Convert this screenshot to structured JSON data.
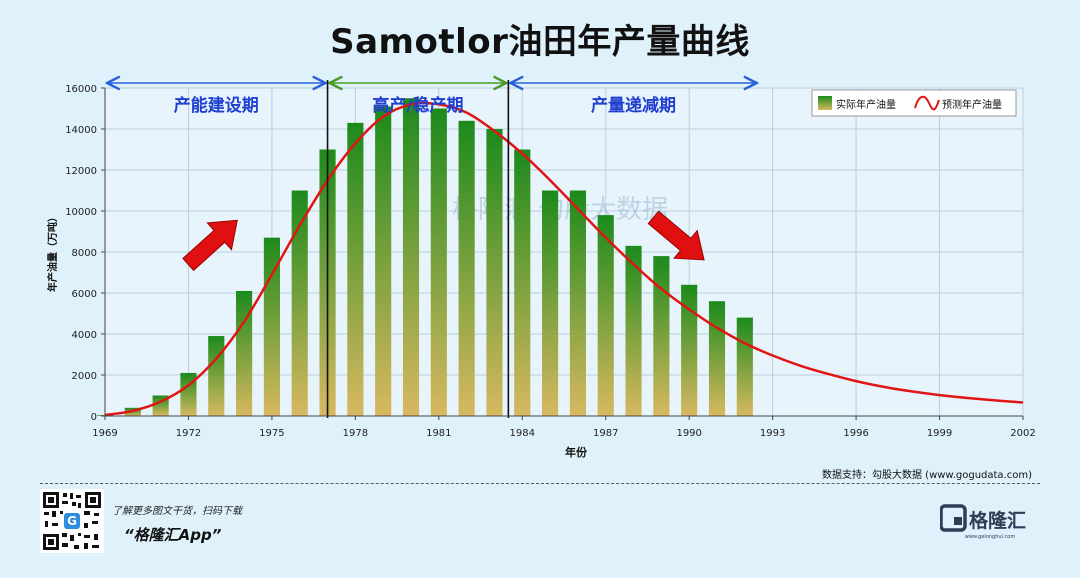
{
  "title": "Samotlor油田年产量曲线",
  "phases": [
    {
      "label": "产能建设期",
      "color": "#2b5fd9",
      "x_from": 1969,
      "x_to": 1977
    },
    {
      "label": "高产/稳产期",
      "color": "#4a9a22",
      "x_from": 1977,
      "x_to": 1983.5
    },
    {
      "label": "产量递减期",
      "color": "#2b5fd9",
      "x_from": 1983.5,
      "x_to": 1992.5
    }
  ],
  "watermark": "格隆汇  勾股大数据",
  "source": "数据支持：勾股大数据  (www.gogudata.com)",
  "footer": {
    "line1": "了解更多图文干货，扫码下载",
    "line2": "“格隆汇App”",
    "brand": "格隆汇",
    "brand_url": "www.gelonghui.com"
  },
  "chart_data": {
    "type": "bar",
    "title": "Samotlor油田年产量曲线",
    "xlabel": "年份",
    "ylabel": "年产油量（万吨）",
    "xlim": [
      1969,
      2002
    ],
    "ylim": [
      0,
      16000
    ],
    "x_ticks": [
      1969,
      1972,
      1975,
      1978,
      1981,
      1984,
      1987,
      1990,
      1993,
      1996,
      1999,
      2002
    ],
    "y_ticks": [
      0,
      2000,
      4000,
      6000,
      8000,
      10000,
      12000,
      14000,
      16000
    ],
    "grid": true,
    "legend_position": "top-right",
    "series": [
      {
        "name": "实际年产油量",
        "type": "bar",
        "color_top": "#1c8a1c",
        "color_bottom": "#d8b860",
        "x": [
          1969,
          1970,
          1971,
          1972,
          1973,
          1974,
          1975,
          1976,
          1977,
          1978,
          1979,
          1980,
          1981,
          1982,
          1983,
          1984,
          1985,
          1986,
          1987,
          1988,
          1989,
          1990,
          1991,
          1992
        ],
        "values": [
          50,
          400,
          1000,
          2100,
          3900,
          6100,
          8700,
          11000,
          13000,
          14300,
          15100,
          15500,
          15000,
          14400,
          14000,
          13000,
          11000,
          11000,
          9800,
          8300,
          7800,
          6400,
          5600,
          4800
        ]
      },
      {
        "name": "预测年产油量",
        "type": "line",
        "color": "#e01515",
        "x": [
          1969,
          1970,
          1971,
          1972,
          1973,
          1974,
          1975,
          1976,
          1977,
          1978,
          1979,
          1980,
          1981,
          1982,
          1983,
          1984,
          1985,
          1986,
          1987,
          1988,
          1989,
          1990,
          1991,
          1992,
          1993,
          1994,
          1995,
          1996,
          1997,
          1998,
          1999,
          2000,
          2001,
          2002
        ],
        "values": [
          50,
          250,
          700,
          1500,
          2800,
          4600,
          6900,
          9300,
          11500,
          13300,
          14600,
          15200,
          15200,
          14800,
          13900,
          12800,
          11500,
          10100,
          8700,
          7400,
          6200,
          5200,
          4300,
          3550,
          2950,
          2450,
          2050,
          1700,
          1420,
          1200,
          1020,
          880,
          760,
          660
        ]
      }
    ]
  }
}
